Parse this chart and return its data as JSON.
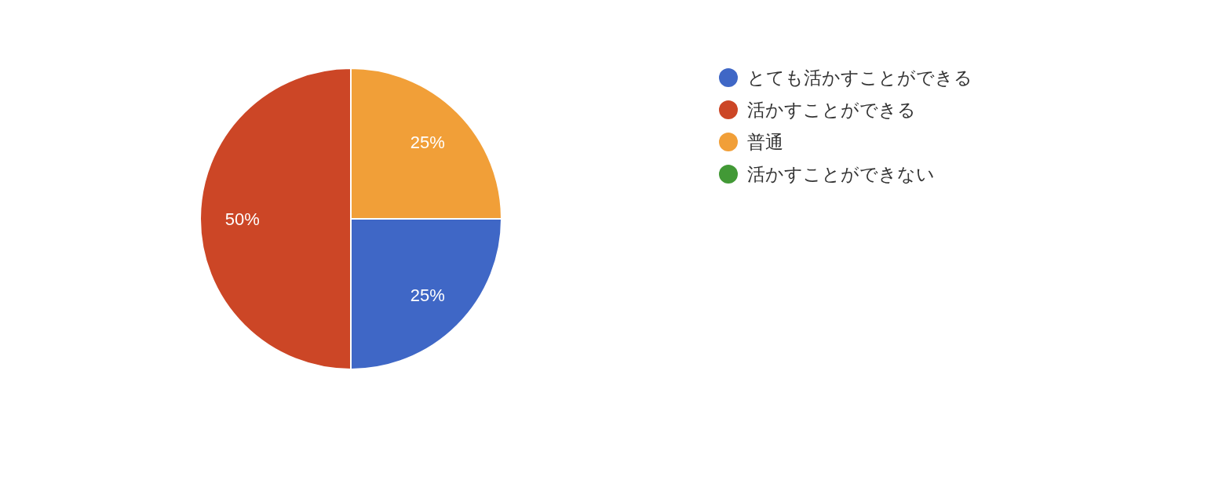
{
  "chart_data": {
    "type": "pie",
    "categories": [
      "とても活かすことができる",
      "活かすことができる",
      "普通",
      "活かすことができない"
    ],
    "values": [
      25,
      50,
      25,
      0
    ],
    "colors": [
      "#3f67c6",
      "#cc4626",
      "#f19f38",
      "#429936"
    ],
    "value_labels": [
      "25%",
      "50%",
      "25%",
      null
    ],
    "legend": "right"
  }
}
